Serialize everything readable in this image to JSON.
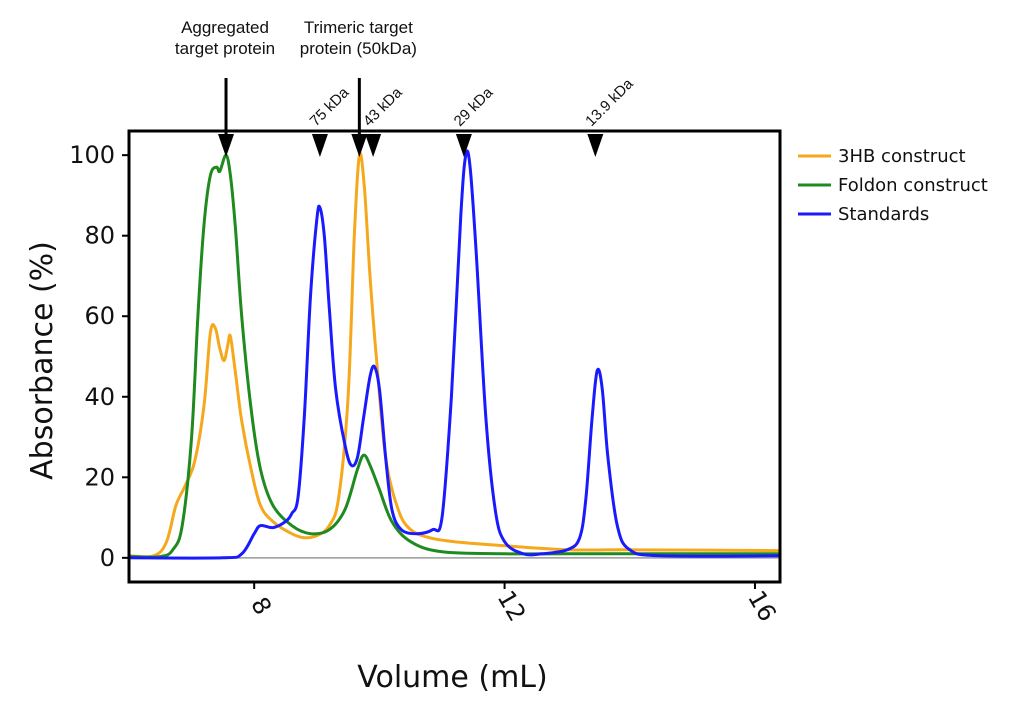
{
  "chart_data": {
    "type": "line",
    "xlabel": "Volume (mL)",
    "ylabel": "Absorbance (%)",
    "xlim": [
      6.0,
      16.4
    ],
    "ylim": [
      -6,
      106
    ],
    "x_ticks": [
      8,
      12,
      16
    ],
    "y_ticks": [
      0,
      20,
      40,
      60,
      80,
      100
    ],
    "baseline_y": 0,
    "legend_position": "right",
    "series": [
      {
        "name": "3HB construct",
        "color": "#f5a81c",
        "points": [
          [
            6.0,
            0.5
          ],
          [
            6.4,
            0.5
          ],
          [
            6.6,
            4
          ],
          [
            6.75,
            13
          ],
          [
            6.9,
            18
          ],
          [
            7.05,
            24
          ],
          [
            7.2,
            38
          ],
          [
            7.3,
            56
          ],
          [
            7.38,
            57
          ],
          [
            7.45,
            52
          ],
          [
            7.52,
            49
          ],
          [
            7.58,
            53
          ],
          [
            7.62,
            55
          ],
          [
            7.7,
            46
          ],
          [
            7.8,
            34
          ],
          [
            7.95,
            22
          ],
          [
            8.1,
            13
          ],
          [
            8.3,
            9
          ],
          [
            8.6,
            6
          ],
          [
            8.8,
            5
          ],
          [
            9.0,
            5.5
          ],
          [
            9.2,
            8
          ],
          [
            9.35,
            15
          ],
          [
            9.5,
            40
          ],
          [
            9.6,
            80
          ],
          [
            9.68,
            100
          ],
          [
            9.76,
            92
          ],
          [
            9.85,
            70
          ],
          [
            9.95,
            50
          ],
          [
            10.1,
            25
          ],
          [
            10.3,
            12
          ],
          [
            10.5,
            7
          ],
          [
            10.8,
            5
          ],
          [
            11.2,
            4
          ],
          [
            12,
            3
          ],
          [
            13,
            2
          ],
          [
            14,
            2
          ],
          [
            16.4,
            1.8
          ]
        ]
      },
      {
        "name": "Foldon construct",
        "color": "#1f8a1f",
        "points": [
          [
            6.0,
            0.3
          ],
          [
            6.5,
            0.3
          ],
          [
            6.7,
            2
          ],
          [
            6.85,
            8
          ],
          [
            7.0,
            30
          ],
          [
            7.1,
            60
          ],
          [
            7.2,
            83
          ],
          [
            7.3,
            95
          ],
          [
            7.4,
            97
          ],
          [
            7.45,
            96
          ],
          [
            7.55,
            100
          ],
          [
            7.62,
            95
          ],
          [
            7.7,
            82
          ],
          [
            7.8,
            60
          ],
          [
            7.95,
            37
          ],
          [
            8.1,
            22
          ],
          [
            8.3,
            13
          ],
          [
            8.6,
            8
          ],
          [
            8.9,
            6
          ],
          [
            9.2,
            7
          ],
          [
            9.45,
            12
          ],
          [
            9.65,
            22
          ],
          [
            9.75,
            25.5
          ],
          [
            9.85,
            23
          ],
          [
            10.0,
            17
          ],
          [
            10.2,
            9
          ],
          [
            10.5,
            4
          ],
          [
            11,
            1.5
          ],
          [
            12,
            1
          ],
          [
            13,
            1
          ],
          [
            14,
            1
          ],
          [
            16.4,
            1
          ]
        ]
      },
      {
        "name": "Standards",
        "color": "#1a1aff",
        "points": [
          [
            6.0,
            0
          ],
          [
            7.5,
            0
          ],
          [
            7.8,
            1
          ],
          [
            8.0,
            6
          ],
          [
            8.1,
            8
          ],
          [
            8.3,
            7.5
          ],
          [
            8.5,
            9
          ],
          [
            8.6,
            11
          ],
          [
            8.7,
            15
          ],
          [
            8.8,
            35
          ],
          [
            8.9,
            65
          ],
          [
            9.0,
            84
          ],
          [
            9.05,
            87
          ],
          [
            9.12,
            80
          ],
          [
            9.2,
            62
          ],
          [
            9.3,
            42
          ],
          [
            9.45,
            28
          ],
          [
            9.55,
            23
          ],
          [
            9.65,
            25
          ],
          [
            9.75,
            35
          ],
          [
            9.85,
            45
          ],
          [
            9.92,
            47.5
          ],
          [
            10.0,
            42
          ],
          [
            10.1,
            25
          ],
          [
            10.2,
            12
          ],
          [
            10.35,
            7
          ],
          [
            10.6,
            6
          ],
          [
            10.85,
            7
          ],
          [
            11.0,
            10
          ],
          [
            11.15,
            40
          ],
          [
            11.3,
            85
          ],
          [
            11.38,
            100
          ],
          [
            11.45,
            97
          ],
          [
            11.55,
            75
          ],
          [
            11.7,
            35
          ],
          [
            11.85,
            12
          ],
          [
            12.0,
            4
          ],
          [
            12.3,
            1
          ],
          [
            12.6,
            1
          ],
          [
            13.0,
            2
          ],
          [
            13.2,
            5
          ],
          [
            13.3,
            15
          ],
          [
            13.4,
            35
          ],
          [
            13.48,
            46.5
          ],
          [
            13.56,
            42
          ],
          [
            13.65,
            25
          ],
          [
            13.8,
            8
          ],
          [
            14.0,
            2
          ],
          [
            14.5,
            0.5
          ],
          [
            16.4,
            0.5
          ]
        ]
      }
    ],
    "markers": [
      {
        "label": "",
        "x": 7.55
      },
      {
        "label": "75 kDa",
        "x": 9.05
      },
      {
        "label": "",
        "x": 9.68
      },
      {
        "label": "43 kDa",
        "x": 9.9
      },
      {
        "label": "29 kDa",
        "x": 11.35
      },
      {
        "label": "13.9 kDa",
        "x": 13.45
      }
    ],
    "annotations": [
      {
        "lines": [
          "Aggregated",
          "target protein"
        ],
        "x": 7.55
      },
      {
        "lines": [
          "Trimeric target",
          "protein (50kDa)"
        ],
        "x": 9.68
      }
    ]
  }
}
